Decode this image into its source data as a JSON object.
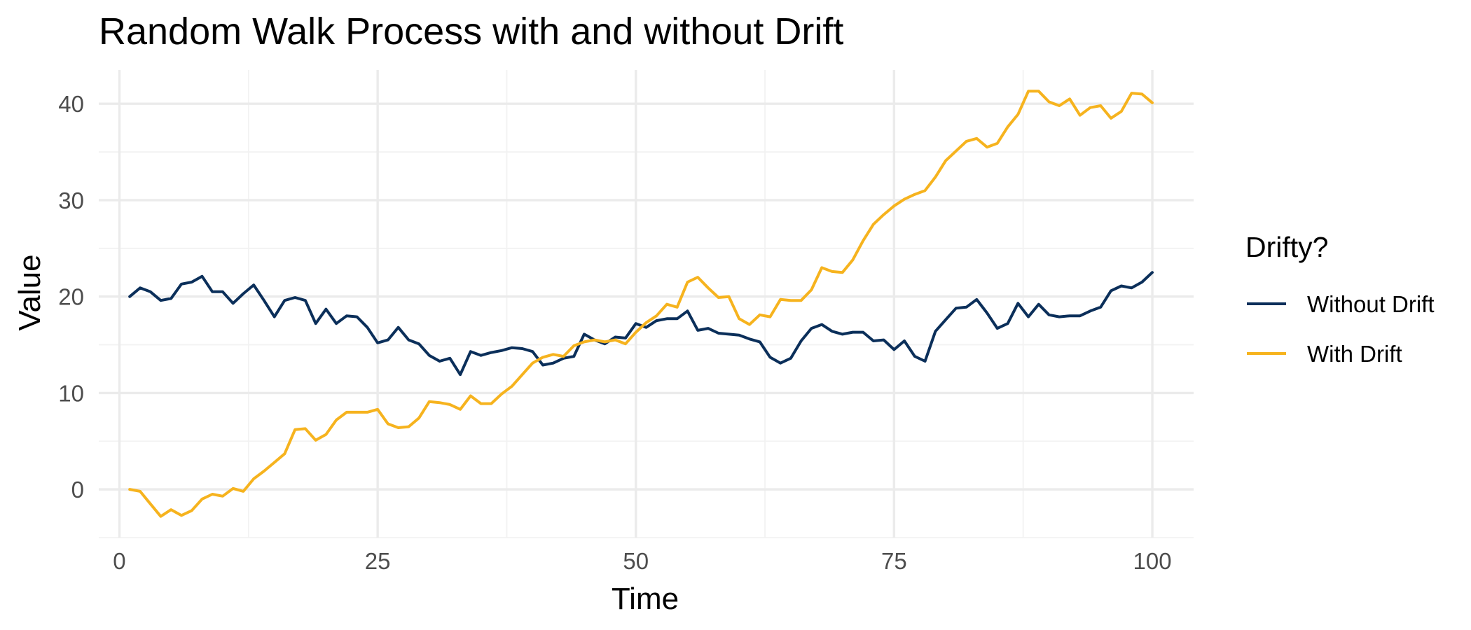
{
  "chart_data": {
    "type": "line",
    "title": "Random Walk Process with and without Drift",
    "xlabel": "Time",
    "ylabel": "Value",
    "xlim": [
      -2,
      104
    ],
    "ylim": [
      -5,
      43.5
    ],
    "x_ticks": [
      0,
      25,
      50,
      75,
      100
    ],
    "y_ticks": [
      0,
      10,
      20,
      30,
      40
    ],
    "grid": true,
    "legend": {
      "title": "Drifty?",
      "position": "right"
    },
    "series": [
      {
        "name": "Without Drift",
        "color": "#0b2f5a",
        "values": [
          20.0,
          20.9,
          20.5,
          19.6,
          19.8,
          21.3,
          21.5,
          22.1,
          20.5,
          20.5,
          19.3,
          20.3,
          21.2,
          19.6,
          17.9,
          19.6,
          19.9,
          19.6,
          17.2,
          18.7,
          17.2,
          18.0,
          17.9,
          16.8,
          15.2,
          15.5,
          16.8,
          15.5,
          15.1,
          13.9,
          13.3,
          13.6,
          11.9,
          14.3,
          13.9,
          14.2,
          14.4,
          14.7,
          14.6,
          14.3,
          12.9,
          13.1,
          13.6,
          13.8,
          16.1,
          15.5,
          15.1,
          15.8,
          15.7,
          17.2,
          16.8,
          17.5,
          17.7,
          17.7,
          18.5,
          16.5,
          16.7,
          16.2,
          16.1,
          16.0,
          15.6,
          15.3,
          13.7,
          13.1,
          13.6,
          15.4,
          16.7,
          17.1,
          16.4,
          16.1,
          16.3,
          16.3,
          15.4,
          15.5,
          14.5,
          15.4,
          13.8,
          13.3,
          16.4,
          17.6,
          18.8,
          18.9,
          19.7,
          18.3,
          16.7,
          17.2,
          19.3,
          17.9,
          19.2,
          18.1,
          17.9,
          18.0,
          18.0,
          18.5,
          18.9,
          20.6,
          21.1,
          20.9,
          21.5,
          22.5
        ]
      },
      {
        "name": "With Drift",
        "color": "#f6b31e",
        "values": [
          0.0,
          -0.2,
          -1.5,
          -2.8,
          -2.1,
          -2.7,
          -2.2,
          -1.0,
          -0.5,
          -0.7,
          0.1,
          -0.2,
          1.1,
          1.9,
          2.8,
          3.7,
          6.2,
          6.3,
          5.1,
          5.7,
          7.2,
          8.0,
          8.0,
          8.0,
          8.3,
          6.8,
          6.4,
          6.5,
          7.4,
          9.1,
          9.0,
          8.8,
          8.3,
          9.7,
          8.9,
          8.9,
          9.9,
          10.7,
          11.9,
          13.1,
          13.7,
          14.0,
          13.8,
          14.9,
          15.3,
          15.5,
          15.3,
          15.5,
          15.1,
          16.3,
          17.3,
          18.0,
          19.2,
          18.9,
          21.5,
          22.0,
          20.9,
          19.9,
          20.0,
          17.7,
          17.1,
          18.1,
          17.9,
          19.7,
          19.6,
          19.6,
          20.7,
          23.0,
          22.6,
          22.5,
          23.8,
          25.8,
          27.5,
          28.5,
          29.4,
          30.1,
          30.6,
          31.0,
          32.4,
          34.1,
          35.1,
          36.1,
          36.4,
          35.5,
          35.9,
          37.6,
          38.9,
          41.3,
          41.3,
          40.2,
          39.8,
          40.5,
          38.8,
          39.6,
          39.8,
          38.5,
          39.2,
          41.1,
          41.0,
          40.1
        ]
      }
    ]
  }
}
